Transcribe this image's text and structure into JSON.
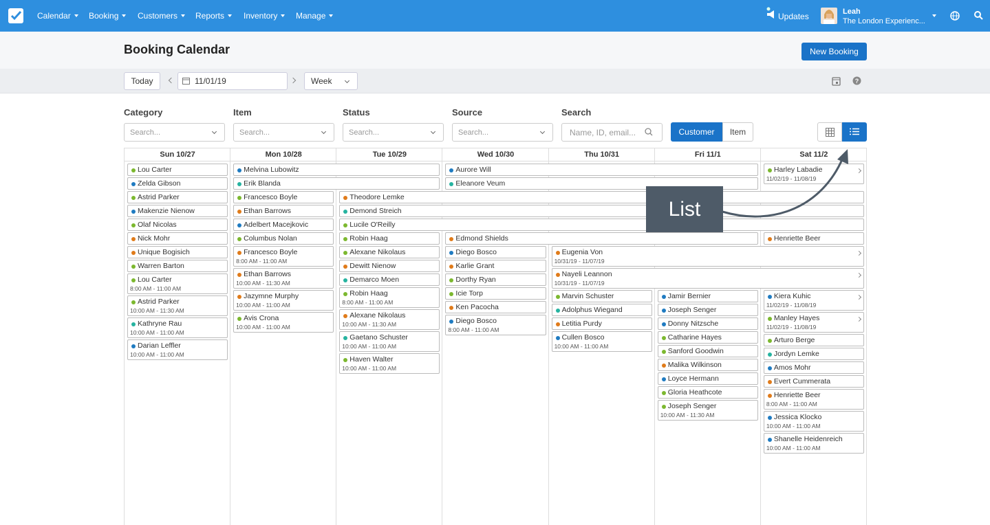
{
  "nav": {
    "menu": [
      "Calendar",
      "Booking",
      "Customers",
      "Reports",
      "Inventory",
      "Manage"
    ],
    "updates": "Updates",
    "user": {
      "name": "Leah",
      "company": "The London Experienc..."
    }
  },
  "header": {
    "title": "Booking Calendar",
    "new_button": "New Booking"
  },
  "toolbar": {
    "today": "Today",
    "date": "11/01/19",
    "view": "Week"
  },
  "filters": [
    {
      "label": "Category",
      "placeholder": "Search..."
    },
    {
      "label": "Item",
      "placeholder": "Search..."
    },
    {
      "label": "Status",
      "placeholder": "Search..."
    },
    {
      "label": "Source",
      "placeholder": "Search..."
    }
  ],
  "search": {
    "label": "Search",
    "placeholder": "Name, ID, email..."
  },
  "toggle": [
    "Customer",
    "Item"
  ],
  "annotation": "List",
  "calendar": {
    "days": [
      {
        "label": "Sun 10/27",
        "events": [
          {
            "name": "Lou Carter",
            "color": "#7cb82f"
          },
          {
            "name": "Zelda Gibson",
            "color": "#1f7bc1"
          },
          {
            "name": "Astrid Parker",
            "color": "#7cb82f"
          },
          {
            "name": "Makenzie Nienow",
            "color": "#1f7bc1"
          },
          {
            "name": "Olaf Nicolas",
            "color": "#7cb82f"
          },
          {
            "name": "Nick Mohr",
            "color": "#e07b1a"
          },
          {
            "name": "Unique Bogisich",
            "color": "#e07b1a"
          },
          {
            "name": "Warren Barton",
            "color": "#7cb82f"
          },
          {
            "name": "Lou Carter",
            "color": "#7cb82f",
            "detail": "8:00 AM - 11:00 AM"
          },
          {
            "name": "Astrid Parker",
            "color": "#7cb82f",
            "detail": "10:00 AM - 11:30 AM"
          },
          {
            "name": "Kathryne Rau",
            "color": "#26b3a0",
            "detail": "10:00 AM - 11:00 AM"
          },
          {
            "name": "Darian Leffler",
            "color": "#1f7bc1",
            "detail": "10:00 AM - 11:00 AM"
          }
        ]
      },
      {
        "label": "Mon 10/28",
        "events": [
          {
            "name": "Melvina Lubowitz",
            "color": "#1f7bc1",
            "span": 2
          },
          {
            "name": "Erik Blanda",
            "color": "#26b3a0",
            "span": 2
          },
          {
            "name": "Francesco Boyle",
            "color": "#7cb82f"
          },
          {
            "name": "Ethan Barrows",
            "color": "#e07b1a"
          },
          {
            "name": "Adelbert Macejkovic",
            "color": "#1f7bc1"
          },
          {
            "name": "Columbus Nolan",
            "color": "#7cb82f"
          },
          {
            "name": "Francesco Boyle",
            "color": "#e07b1a",
            "detail": "8:00 AM - 11:00 AM"
          },
          {
            "name": "Ethan Barrows",
            "color": "#e07b1a",
            "detail": "10:00 AM - 11:30 AM"
          },
          {
            "name": "Jazymne Murphy",
            "color": "#e07b1a",
            "detail": "10:00 AM - 11:00 AM"
          },
          {
            "name": "Avis Crona",
            "color": "#7cb82f",
            "detail": "10:00 AM - 11:00 AM"
          }
        ]
      },
      {
        "label": "Tue 10/29",
        "events": [
          {
            "name": "Theodore Lemke",
            "color": "#e07b1a",
            "span": 5
          },
          {
            "name": "Demond Streich",
            "color": "#26b3a0",
            "span": 5
          },
          {
            "name": "Lucile O'Reilly",
            "color": "#7cb82f",
            "span": 5
          },
          {
            "name": "Robin Haag",
            "color": "#7cb82f"
          },
          {
            "name": "Alexane Nikolaus",
            "color": "#7cb82f"
          },
          {
            "name": "Dewitt Nienow",
            "color": "#e07b1a"
          },
          {
            "name": "Demarco Moen",
            "color": "#26b3a0"
          },
          {
            "name": "Robin Haag",
            "color": "#7cb82f",
            "detail": "8:00 AM - 11:00 AM"
          },
          {
            "name": "Alexane Nikolaus",
            "color": "#e07b1a",
            "detail": "10:00 AM - 11:30 AM"
          },
          {
            "name": "Gaetano Schuster",
            "color": "#26b3a0",
            "detail": "10:00 AM - 11:00 AM"
          },
          {
            "name": "Haven Walter",
            "color": "#7cb82f",
            "detail": "10:00 AM - 11:00 AM"
          }
        ]
      },
      {
        "label": "Wed 10/30",
        "events": [
          {
            "name": "Aurore Will",
            "color": "#1f7bc1",
            "span": 3
          },
          {
            "name": "Eleanore Veum",
            "color": "#26b3a0",
            "span": 3
          },
          {
            "name": "Edmond Shields",
            "color": "#e07b1a",
            "span": 3
          },
          {
            "name": "Diego Bosco",
            "color": "#1f7bc1"
          },
          {
            "name": "Karlie Grant",
            "color": "#e07b1a"
          },
          {
            "name": "Dorthy Ryan",
            "color": "#7cb82f"
          },
          {
            "name": "Icie Torp",
            "color": "#7cb82f"
          },
          {
            "name": "Ken Pacocha",
            "color": "#e07b1a"
          },
          {
            "name": "Diego Bosco",
            "color": "#1f7bc1",
            "detail": "8:00 AM - 11:00 AM"
          }
        ]
      },
      {
        "label": "Thu 10/31",
        "events": [
          {
            "name": "Eugenia Von",
            "color": "#e07b1a",
            "span": 3,
            "detail": "10/31/19 - 11/07/19",
            "more": true
          },
          {
            "name": "Nayeli Leannon",
            "color": "#e07b1a",
            "span": 3,
            "detail": "10/31/19 - 11/07/19",
            "more": true
          },
          {
            "name": "Marvin Schuster",
            "color": "#7cb82f"
          },
          {
            "name": "Adolphus Wiegand",
            "color": "#26b3a0"
          },
          {
            "name": "Letitia Purdy",
            "color": "#e07b1a"
          },
          {
            "name": "Cullen Bosco",
            "color": "#1f7bc1",
            "detail": "10:00 AM - 11:00 AM"
          }
        ]
      },
      {
        "label": "Fri 11/1",
        "events": [
          {
            "name": "Jamir Bernier",
            "color": "#1f7bc1"
          },
          {
            "name": "Joseph Senger",
            "color": "#1f7bc1"
          },
          {
            "name": "Donny Nitzsche",
            "color": "#1f7bc1"
          },
          {
            "name": "Catharine Hayes",
            "color": "#7cb82f"
          },
          {
            "name": "Sanford Goodwin",
            "color": "#7cb82f"
          },
          {
            "name": "Malika Wilkinson",
            "color": "#e07b1a"
          },
          {
            "name": "Loyce Hermann",
            "color": "#1f7bc1"
          },
          {
            "name": "Gloria Heathcote",
            "color": "#7cb82f"
          },
          {
            "name": "Joseph Senger",
            "color": "#7cb82f",
            "detail": "10:00 AM - 11:30 AM"
          }
        ]
      },
      {
        "label": "Sat 11/2",
        "events": [
          {
            "name": "Harley Labadie",
            "color": "#7cb82f",
            "detail": "11/02/19 - 11/08/19",
            "more": true
          },
          {
            "name": "Henriette Beer",
            "color": "#e07b1a"
          },
          {
            "name": "Kiera Kuhic",
            "color": "#1f7bc1",
            "detail": "11/02/19 - 11/08/19",
            "more": true
          },
          {
            "name": "Manley Hayes",
            "color": "#7cb82f",
            "detail": "11/02/19 - 11/08/19",
            "more": true
          },
          {
            "name": "Arturo Berge",
            "color": "#7cb82f"
          },
          {
            "name": "Jordyn Lemke",
            "color": "#26b3a0"
          },
          {
            "name": "Amos Mohr",
            "color": "#1f7bc1"
          },
          {
            "name": "Evert Cummerata",
            "color": "#e07b1a"
          },
          {
            "name": "Henriette Beer",
            "color": "#e07b1a",
            "detail": "8:00 AM - 11:00 AM"
          },
          {
            "name": "Jessica Klocko",
            "color": "#1f7bc1",
            "detail": "10:00 AM - 11:00 AM"
          },
          {
            "name": "Shanelle Heidenreich",
            "color": "#1f7bc1",
            "detail": "10:00 AM - 11:00 AM"
          }
        ]
      }
    ]
  }
}
